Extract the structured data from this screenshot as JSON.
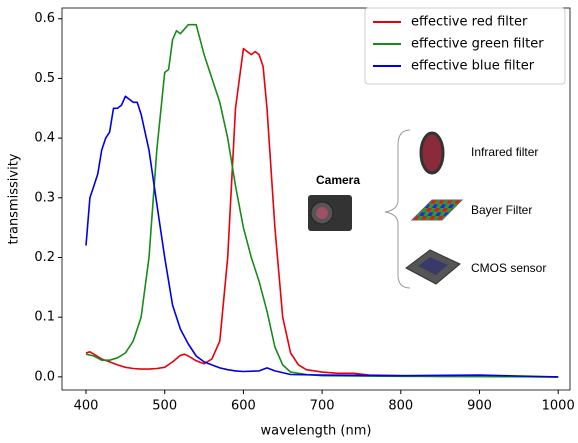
{
  "chart_data": {
    "type": "line",
    "xlabel": "wavelength (nm)",
    "ylabel": "transmissivity",
    "xlim": [
      369.5,
      1015
    ],
    "ylim": [
      -0.022,
      0.618
    ],
    "xticks": [
      400,
      500,
      600,
      700,
      800,
      900,
      1000
    ],
    "yticks": [
      {
        "value": 0,
        "label": "0.0"
      },
      0.1,
      0.2,
      0.3,
      0.4,
      0.5,
      0.6
    ],
    "legend": "upper right",
    "series": [
      {
        "name": "effective red filter",
        "color": "#e8000b",
        "x": [
          400,
          405,
          410,
          420,
          430,
          440,
          450,
          460,
          470,
          480,
          490,
          500,
          510,
          520,
          525,
          530,
          540,
          550,
          560,
          570,
          580,
          590,
          600,
          605,
          610,
          615,
          620,
          625,
          630,
          640,
          650,
          660,
          670,
          680,
          700,
          720,
          740,
          760,
          800,
          850,
          900,
          1000
        ],
        "values": [
          0.04,
          0.042,
          0.038,
          0.03,
          0.025,
          0.02,
          0.016,
          0.014,
          0.013,
          0.013,
          0.014,
          0.016,
          0.025,
          0.036,
          0.038,
          0.035,
          0.027,
          0.022,
          0.03,
          0.06,
          0.2,
          0.45,
          0.55,
          0.545,
          0.54,
          0.545,
          0.54,
          0.52,
          0.45,
          0.25,
          0.1,
          0.04,
          0.02,
          0.012,
          0.008,
          0.006,
          0.006,
          0.003,
          0.002,
          0.001,
          0.001,
          0.0
        ]
      },
      {
        "name": "effective green filter",
        "color": "#1a8a1a",
        "x": [
          400,
          410,
          420,
          430,
          440,
          450,
          460,
          470,
          480,
          490,
          500,
          505,
          510,
          515,
          520,
          530,
          540,
          550,
          560,
          570,
          580,
          590,
          600,
          610,
          620,
          630,
          640,
          650,
          660,
          680,
          700,
          800,
          1000
        ],
        "values": [
          0.038,
          0.035,
          0.028,
          0.028,
          0.032,
          0.04,
          0.06,
          0.1,
          0.2,
          0.38,
          0.51,
          0.515,
          0.565,
          0.58,
          0.575,
          0.59,
          0.59,
          0.54,
          0.5,
          0.46,
          0.4,
          0.32,
          0.25,
          0.2,
          0.16,
          0.11,
          0.05,
          0.02,
          0.008,
          0.004,
          0.002,
          0.001,
          0.0
        ]
      },
      {
        "name": "effective blue filter",
        "color": "#0000e6",
        "x": [
          400,
          405,
          410,
          415,
          420,
          425,
          430,
          435,
          440,
          445,
          450,
          455,
          460,
          465,
          470,
          480,
          490,
          500,
          510,
          520,
          530,
          540,
          550,
          560,
          570,
          580,
          590,
          600,
          620,
          630,
          640,
          660,
          700,
          800,
          900,
          1000
        ],
        "values": [
          0.22,
          0.3,
          0.32,
          0.34,
          0.38,
          0.4,
          0.41,
          0.45,
          0.45,
          0.455,
          0.47,
          0.465,
          0.46,
          0.46,
          0.44,
          0.38,
          0.29,
          0.2,
          0.12,
          0.08,
          0.055,
          0.035,
          0.025,
          0.02,
          0.015,
          0.012,
          0.01,
          0.009,
          0.01,
          0.015,
          0.01,
          0.004,
          0.003,
          0.002,
          0.003,
          0.0
        ]
      }
    ],
    "inset": {
      "title": "Camera",
      "items": [
        "Infrared filter",
        "Bayer Filter",
        "CMOS sensor"
      ]
    }
  }
}
